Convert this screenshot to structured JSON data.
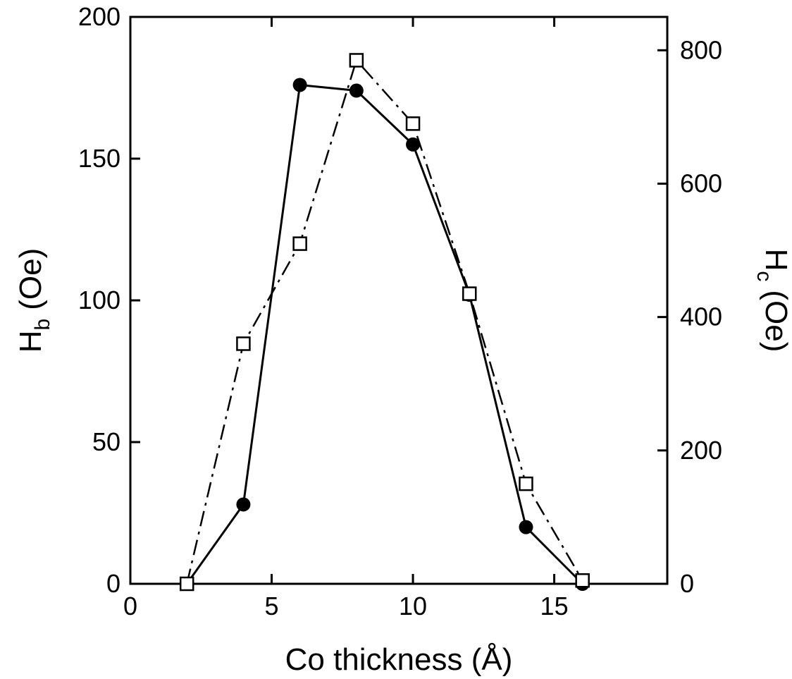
{
  "chart_data": {
    "type": "line",
    "x_axis": {
      "label": "Co thickness (Å)",
      "range": [
        0,
        19
      ],
      "ticks": [
        0,
        5,
        10,
        15
      ],
      "tick_labels": [
        "0",
        "5",
        "10",
        "15"
      ]
    },
    "y_left": {
      "label_main": "H",
      "label_sub": "b",
      "label_unit": "(Oe)",
      "range": [
        0,
        200
      ],
      "ticks": [
        0,
        50,
        100,
        150,
        200
      ],
      "tick_labels": [
        "0",
        "50",
        "100",
        "150",
        "200"
      ]
    },
    "y_right": {
      "label_main": "H",
      "label_sub": "c",
      "label_unit": "(Oe)",
      "range": [
        0,
        850
      ],
      "ticks": [
        0,
        200,
        400,
        600,
        800
      ],
      "tick_labels": [
        "0",
        "200",
        "400",
        "600",
        "800"
      ]
    },
    "series": [
      {
        "axis": "left",
        "marker": "filled-circle",
        "line": "solid",
        "x": [
          2,
          4,
          6,
          8,
          10,
          12,
          14,
          16
        ],
        "y": [
          0,
          28,
          176,
          174,
          155,
          102,
          20,
          0
        ]
      },
      {
        "axis": "right",
        "marker": "open-square",
        "line": "dash-dot",
        "x": [
          2,
          4,
          6,
          8,
          10,
          12,
          14,
          16
        ],
        "y": [
          0,
          360,
          510,
          785,
          690,
          435,
          150,
          5
        ]
      }
    ],
    "grid": false,
    "legend": "none"
  }
}
